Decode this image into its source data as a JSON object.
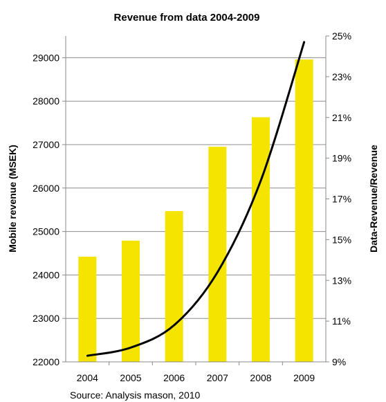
{
  "chart_data": {
    "type": "bar",
    "title": "Revenue from data 2004-2009",
    "categories": [
      "2004",
      "2005",
      "2006",
      "2007",
      "2008",
      "2009"
    ],
    "ylabel": "Mobile revenue (MSEK)",
    "y2label": "Data-Revenue/Revenue",
    "ylim": [
      22000,
      29500
    ],
    "y2lim": [
      9,
      25
    ],
    "yticks": [
      "22000",
      "23000",
      "24000",
      "25000",
      "26000",
      "27000",
      "28000",
      "29000"
    ],
    "y2ticks": [
      "9%",
      "11%",
      "13%",
      "15%",
      "17%",
      "19%",
      "21%",
      "23%",
      "25%"
    ],
    "grid": true,
    "series": [
      {
        "type": "bar",
        "axis": "left",
        "color": "#f5e400",
        "values": [
          24420,
          24790,
          25470,
          26950,
          27630,
          28960
        ]
      },
      {
        "type": "line",
        "axis": "right",
        "color": "#000000",
        "x": [
          "2004",
          "2005",
          "2006",
          "2007",
          "2008",
          "2009"
        ],
        "values": [
          9.3,
          9.7,
          10.8,
          13.4,
          17.9,
          24.7
        ]
      }
    ],
    "source": "Source: Analysis mason, 2010"
  }
}
